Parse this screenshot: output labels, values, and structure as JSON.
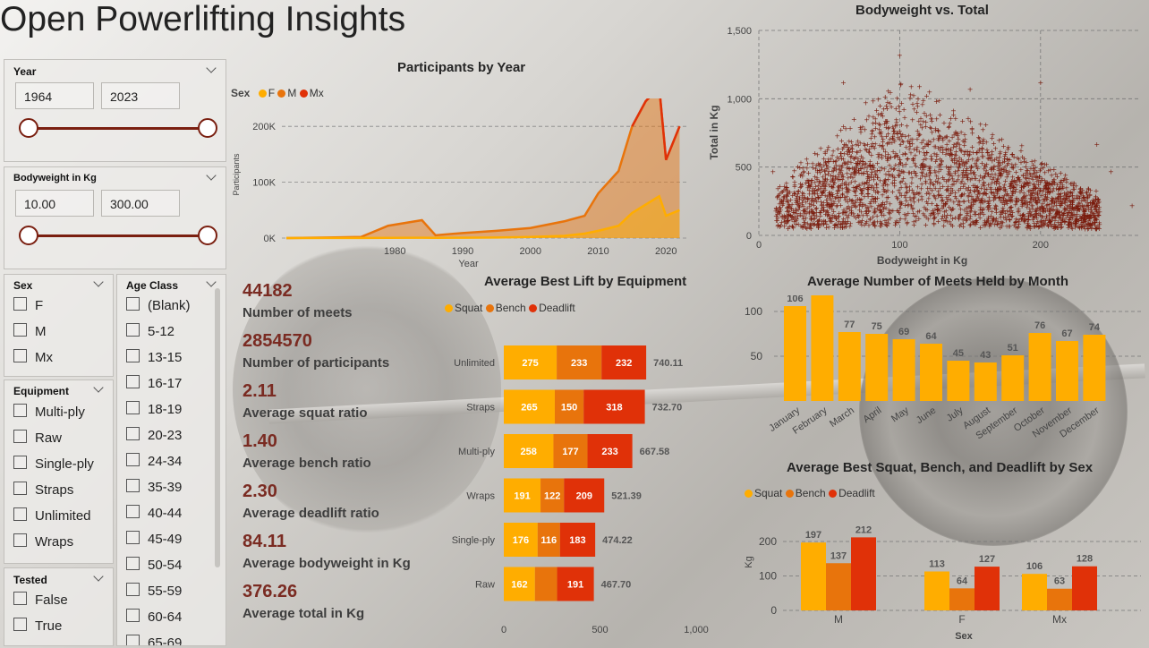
{
  "title": "Open Powerlifting Insights",
  "colors": {
    "squat": "#ffad00",
    "bench": "#e8740c",
    "deadlift": "#e03108",
    "scatter": "#7a1c0e",
    "accent": "#7a1f10"
  },
  "filters": {
    "year": {
      "title": "Year",
      "min": "1964",
      "max": "2023"
    },
    "bodyweight": {
      "title": "Bodyweight in Kg",
      "min": "10.00",
      "max": "300.00"
    },
    "sex": {
      "title": "Sex",
      "options": [
        "F",
        "M",
        "Mx"
      ]
    },
    "equipment": {
      "title": "Equipment",
      "options": [
        "Multi-ply",
        "Raw",
        "Single-ply",
        "Straps",
        "Unlimited",
        "Wraps"
      ]
    },
    "tested": {
      "title": "Tested",
      "options": [
        "False",
        "True"
      ]
    },
    "age_class": {
      "title": "Age Class",
      "options": [
        "(Blank)",
        "5-12",
        "13-15",
        "16-17",
        "18-19",
        "20-23",
        "24-34",
        "35-39",
        "40-44",
        "45-49",
        "50-54",
        "55-59",
        "60-64",
        "65-69"
      ]
    }
  },
  "kpis": [
    {
      "value": "44182",
      "label": "Number of meets"
    },
    {
      "value": "2854570",
      "label": "Number of participants"
    },
    {
      "value": "2.11",
      "label": "Average squat ratio"
    },
    {
      "value": "1.40",
      "label": "Average bench ratio"
    },
    {
      "value": "2.30",
      "label": "Average deadlift ratio"
    },
    {
      "value": "84.11",
      "label": "Average bodyweight in Kg"
    },
    {
      "value": "376.26",
      "label": "Average total in Kg"
    }
  ],
  "charts": {
    "participants": {
      "title": "Participants by Year",
      "legend_title": "Sex",
      "legend": [
        "F",
        "M",
        "Mx"
      ],
      "xlabel": "Year",
      "ylabel": "Participants",
      "xticks": [
        "1980",
        "1990",
        "2000",
        "2010",
        "2020"
      ],
      "yticks": [
        "0K",
        "100K",
        "200K"
      ]
    },
    "scatter": {
      "title": "Bodyweight vs. Total",
      "xlabel": "Bodyweight in Kg",
      "ylabel": "Total in Kg",
      "xticks": [
        "0",
        "100",
        "200"
      ],
      "yticks": [
        "0",
        "500",
        "1,000",
        "1,500"
      ]
    },
    "equipment": {
      "title": "Average Best Lift by Equipment",
      "legend": [
        "Squat",
        "Bench",
        "Deadlift"
      ],
      "xticks": [
        "0",
        "500",
        "1,000"
      ]
    },
    "months": {
      "title": "Average Number of Meets Held by Month",
      "yticks": [
        "50",
        "100"
      ]
    },
    "sexlift": {
      "title": "Average Best Squat, Bench, and Deadlift by Sex",
      "legend": [
        "Squat",
        "Bench",
        "Deadlift"
      ],
      "ylabel": "Kg",
      "xlabel": "Sex",
      "yticks": [
        "0",
        "100",
        "200"
      ]
    }
  },
  "chart_data": [
    {
      "type": "area",
      "title": "Participants by Year",
      "xlabel": "Year",
      "ylabel": "Participants",
      "legend_title": "Sex",
      "x": [
        1964,
        1970,
        1975,
        1979,
        1984,
        1986,
        1990,
        1995,
        2000,
        2005,
        2008,
        2010,
        2013,
        2015,
        2017,
        2019,
        2020,
        2021,
        2022
      ],
      "series": [
        {
          "name": "F",
          "values": [
            0,
            200,
            300,
            400,
            600,
            400,
            600,
            1000,
            2000,
            4000,
            8000,
            13000,
            22000,
            45000,
            60000,
            75000,
            40000,
            45000,
            50000
          ]
        },
        {
          "name": "M",
          "values": [
            0,
            1000,
            2000,
            22000,
            32000,
            5000,
            9000,
            13000,
            18000,
            30000,
            40000,
            80000,
            120000,
            200000,
            245000,
            270000,
            140000,
            170000,
            200000
          ]
        },
        {
          "name": "Mx",
          "values": [
            0,
            0,
            0,
            0,
            0,
            0,
            0,
            0,
            0,
            0,
            0,
            0,
            0,
            0,
            50,
            100,
            80,
            100,
            150
          ]
        }
      ],
      "xlim": [
        1964,
        2023
      ],
      "ylim": [
        0,
        250000
      ]
    },
    {
      "type": "scatter",
      "title": "Bodyweight vs. Total",
      "xlabel": "Bodyweight in Kg",
      "ylabel": "Total in Kg",
      "xlim": [
        0,
        270
      ],
      "ylim": [
        0,
        1500
      ],
      "note_points": [
        [
          10,
          450
        ],
        [
          20,
          330
        ],
        [
          60,
          1100
        ],
        [
          100,
          1300
        ],
        [
          150,
          1050
        ],
        [
          200,
          1100
        ],
        [
          240,
          650
        ],
        [
          250,
          450
        ],
        [
          265,
          200
        ]
      ]
    },
    {
      "type": "bar",
      "title": "Average Best Lift by Equipment",
      "orientation": "horizontal",
      "stacked": true,
      "categories": [
        "Unlimited",
        "Straps",
        "Multi-ply",
        "Wraps",
        "Single-ply",
        "Raw"
      ],
      "series": [
        {
          "name": "Squat",
          "values": [
            275,
            265,
            258,
            191,
            176,
            162
          ]
        },
        {
          "name": "Bench",
          "values": [
            233,
            150,
            177,
            122,
            116,
            115
          ]
        },
        {
          "name": "Deadlift",
          "values": [
            232,
            318,
            233,
            209,
            183,
            191
          ]
        }
      ],
      "totals": [
        "740.11",
        "732.70",
        "667.58",
        "521.39",
        "474.22",
        "467.70"
      ],
      "xlim": [
        0,
        1000
      ]
    },
    {
      "type": "bar",
      "title": "Average Number of Meets Held by Month",
      "categories": [
        "January",
        "February",
        "March",
        "April",
        "May",
        "June",
        "July",
        "August",
        "September",
        "October",
        "November",
        "December"
      ],
      "values": [
        106,
        127,
        77,
        75,
        69,
        64,
        45,
        43,
        51,
        76,
        67,
        74
      ],
      "ylim": [
        0,
        130
      ]
    },
    {
      "type": "bar",
      "title": "Average Best Squat, Bench, and Deadlift by Sex",
      "xlabel": "Sex",
      "ylabel": "Kg",
      "categories": [
        "M",
        "F",
        "Mx"
      ],
      "series": [
        {
          "name": "Squat",
          "values": [
            197,
            113,
            106
          ]
        },
        {
          "name": "Bench",
          "values": [
            137,
            64,
            63
          ]
        },
        {
          "name": "Deadlift",
          "values": [
            212,
            127,
            128
          ]
        }
      ],
      "ylim": [
        0,
        230
      ]
    }
  ]
}
